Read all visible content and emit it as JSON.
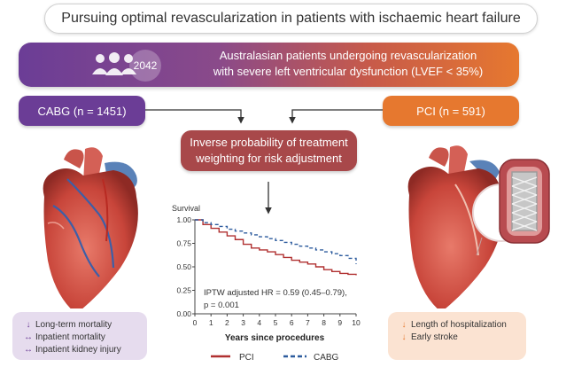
{
  "title": "Pursuing optimal revascularization in patients with ischaemic heart failure",
  "population": {
    "count": "2042",
    "line1": "Australasian patients undergoing revascularization",
    "line2": "with severe left ventricular dysfunction (LVEF < 35%)"
  },
  "arms": {
    "cabg": "CABG (n = 1451)",
    "pci": "PCI (n = 591)"
  },
  "weighting": {
    "line1": "Inverse probability of treatment",
    "line2": "weighting for risk adjustment"
  },
  "outcomes": {
    "cabg": [
      {
        "arrow": "↓",
        "text": "Long-term mortality"
      },
      {
        "arrow": "↔",
        "text": "Inpatient mortality"
      },
      {
        "arrow": "↔",
        "text": "Inpatient kidney injury"
      }
    ],
    "pci": [
      {
        "arrow": "↓",
        "text": "Length of hospitalization"
      },
      {
        "arrow": "↓",
        "text": "Early stroke"
      }
    ]
  },
  "colors": {
    "purple": "#6b3d96",
    "orange": "#e6782f",
    "red": "#a8484a",
    "pci_line": "#b03030",
    "cabg_line": "#2e5c9e"
  },
  "icons": [
    "people-icon",
    "heart-cabg-illustration",
    "heart-pci-stent-illustration"
  ],
  "chart_data": {
    "type": "line",
    "ylabel": "Survival",
    "xlabel": "Years since procedures",
    "xlim": [
      0,
      10
    ],
    "ylim": [
      0,
      1
    ],
    "xticks": [
      "0",
      "1",
      "2",
      "3",
      "4",
      "5",
      "6",
      "7",
      "8",
      "9",
      "10"
    ],
    "yticks": [
      "0.00",
      "0.25",
      "0.50",
      "0.75",
      "1.00"
    ],
    "annotation": {
      "line1": "IPTW adjusted HR = 0.59 (0.45–0.79),",
      "line2": "p = 0.001"
    },
    "series": [
      {
        "name": "PCI",
        "x": [
          0,
          0.5,
          1,
          1.5,
          2,
          2.5,
          3,
          3.5,
          4,
          4.5,
          5,
          5.5,
          6,
          6.5,
          7,
          7.5,
          8,
          8.5,
          9,
          9.5,
          10
        ],
        "values": [
          1.0,
          0.95,
          0.91,
          0.87,
          0.83,
          0.79,
          0.74,
          0.7,
          0.68,
          0.66,
          0.63,
          0.6,
          0.57,
          0.55,
          0.53,
          0.5,
          0.47,
          0.45,
          0.43,
          0.42,
          0.41
        ]
      },
      {
        "name": "CABG",
        "x": [
          0,
          0.5,
          1,
          1.5,
          2,
          2.5,
          3,
          3.5,
          4,
          4.5,
          5,
          5.5,
          6,
          6.5,
          7,
          7.5,
          8,
          8.5,
          9,
          9.5,
          10
        ],
        "values": [
          1.0,
          0.97,
          0.95,
          0.93,
          0.9,
          0.88,
          0.86,
          0.84,
          0.82,
          0.8,
          0.78,
          0.76,
          0.74,
          0.72,
          0.7,
          0.68,
          0.66,
          0.64,
          0.62,
          0.59,
          0.53
        ]
      }
    ],
    "legend": [
      "PCI",
      "CABG"
    ],
    "legend_position": "bottom"
  }
}
